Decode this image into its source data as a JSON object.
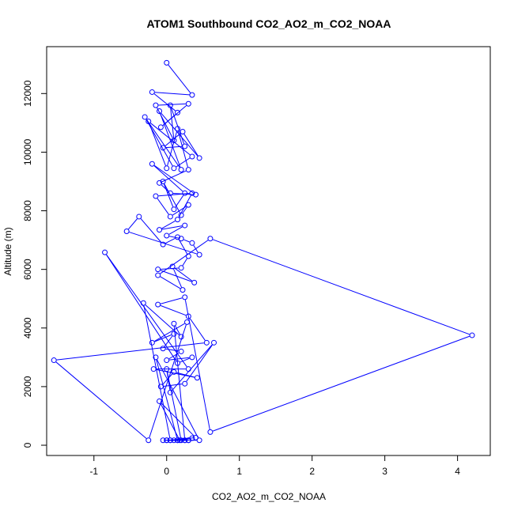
{
  "chart_data": {
    "type": "scatter",
    "title": "ATOM1 Southbound CO2_AO2_m_CO2_NOAA",
    "xlabel": "CO2_AO2_m_CO2_NOAA",
    "ylabel": "Altitude (m)",
    "xlim": [
      -1.65,
      4.45
    ],
    "ylim": [
      -350,
      13600
    ],
    "x_ticks": [
      -1,
      0,
      1,
      2,
      3,
      4
    ],
    "x_tick_labels": [
      "-1",
      "0",
      "1",
      "2",
      "3",
      "4"
    ],
    "y_ticks": [
      0,
      2000,
      4000,
      6000,
      8000,
      10000,
      12000
    ],
    "y_tick_labels": [
      "0",
      "2000",
      "4000",
      "6000",
      "8000",
      "10000",
      "12000"
    ],
    "grid": false,
    "marker": "open-circle",
    "connect_points": true,
    "color": "#0000ff",
    "series": [
      {
        "x": [
          0.0,
          0.35,
          -0.2,
          0.15,
          -0.08,
          0.3,
          -0.15,
          0.1,
          0.05,
          0.25,
          -0.05,
          0.22,
          0.45,
          -0.1,
          0.2,
          -0.3,
          0.1,
          0.35,
          -0.25,
          0.0,
          0.15,
          0.3,
          -0.1,
          0.05,
          0.4,
          -0.2,
          0.25,
          0.1,
          -0.05,
          0.2,
          0.3,
          0.05,
          -0.15,
          0.35,
          0.15,
          -0.1,
          0.25,
          0.0,
          0.2,
          0.35,
          0.45,
          -0.55,
          -0.38,
          -0.05,
          0.15,
          0.3,
          0.2,
          -0.12,
          0.38,
          0.08,
          0.22,
          -0.12,
          0.6,
          4.2,
          0.6,
          0.25,
          -0.12,
          0.3,
          0.55,
          -1.55,
          -0.25,
          0.28,
          -0.2,
          0.1,
          -0.05,
          0.2,
          0.0,
          0.35,
          0.15,
          -0.85,
          0.3,
          -0.18,
          0.42,
          0.1,
          -0.08,
          0.25,
          0.65,
          0.05,
          0.0,
          0.2,
          -0.05,
          0.3,
          0.15,
          0.1,
          0.25,
          0.0,
          0.35,
          0.18,
          -0.1,
          0.4,
          0.05,
          -0.32,
          0.2,
          0.1,
          0.25,
          0.0,
          0.15,
          -0.15,
          0.45,
          0.05,
          0.3
        ],
        "y": [
          13050,
          11950,
          12050,
          11350,
          10850,
          11650,
          11600,
          10400,
          11600,
          10200,
          10150,
          10700,
          9800,
          11400,
          9400,
          11200,
          9450,
          9850,
          11050,
          9450,
          10800,
          9400,
          8950,
          8600,
          8550,
          9600,
          8600,
          8050,
          9000,
          7850,
          8200,
          7800,
          8500,
          8600,
          7700,
          7350,
          7500,
          7150,
          7050,
          6900,
          6500,
          7300,
          7800,
          6850,
          7100,
          6450,
          6050,
          6000,
          5550,
          6100,
          5300,
          5800,
          7050,
          3750,
          450,
          5050,
          4800,
          4400,
          3500,
          2900,
          170,
          4200,
          3500,
          3800,
          3300,
          3200,
          2900,
          3000,
          2800,
          6580,
          2600,
          2600,
          2300,
          2500,
          2000,
          2100,
          3500,
          1800,
          2600,
          170,
          170,
          170,
          170,
          170,
          170,
          170,
          240,
          170,
          1500,
          260,
          170,
          4850,
          3700,
          4150,
          170,
          170,
          170,
          3000,
          170,
          170,
          170
        ]
      }
    ]
  }
}
